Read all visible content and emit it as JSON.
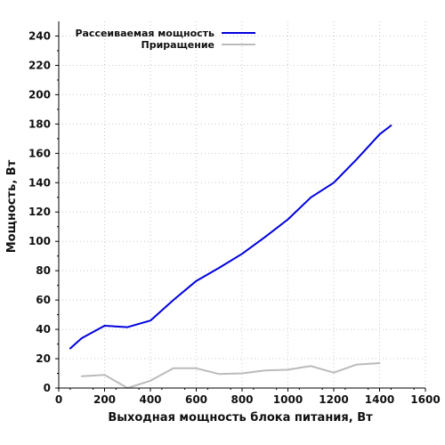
{
  "chart_data": {
    "type": "line",
    "xlabel": "Выходная мощность блока питания, Вт",
    "ylabel": "Мощность, Вт",
    "xlim": [
      0,
      1600
    ],
    "ylim": [
      0,
      250
    ],
    "xticks": [
      0,
      200,
      400,
      600,
      800,
      1000,
      1200,
      1400,
      1600
    ],
    "yticks": [
      0,
      20,
      40,
      60,
      80,
      100,
      120,
      140,
      160,
      180,
      200,
      220,
      240
    ],
    "grid": true,
    "legend_position": "top-left",
    "series": [
      {
        "name": "Рассеиваемая мощность",
        "color": "#0000dd",
        "x": [
          50,
          100,
          200,
          300,
          400,
          500,
          600,
          700,
          800,
          900,
          1000,
          1100,
          1200,
          1300,
          1400,
          1450
        ],
        "y": [
          27,
          34,
          42.5,
          41.5,
          46,
          60,
          73,
          82,
          91.5,
          103,
          115,
          130,
          140,
          156,
          173,
          179
        ]
      },
      {
        "name": "Приращение",
        "color": "#bbbbbb",
        "x": [
          100,
          200,
          300,
          400,
          500,
          600,
          700,
          800,
          900,
          1000,
          1100,
          1200,
          1300,
          1400
        ],
        "y": [
          8,
          9,
          0,
          5,
          13.5,
          13.5,
          9.5,
          10,
          12,
          12.5,
          15,
          10.5,
          16,
          17
        ]
      }
    ]
  }
}
